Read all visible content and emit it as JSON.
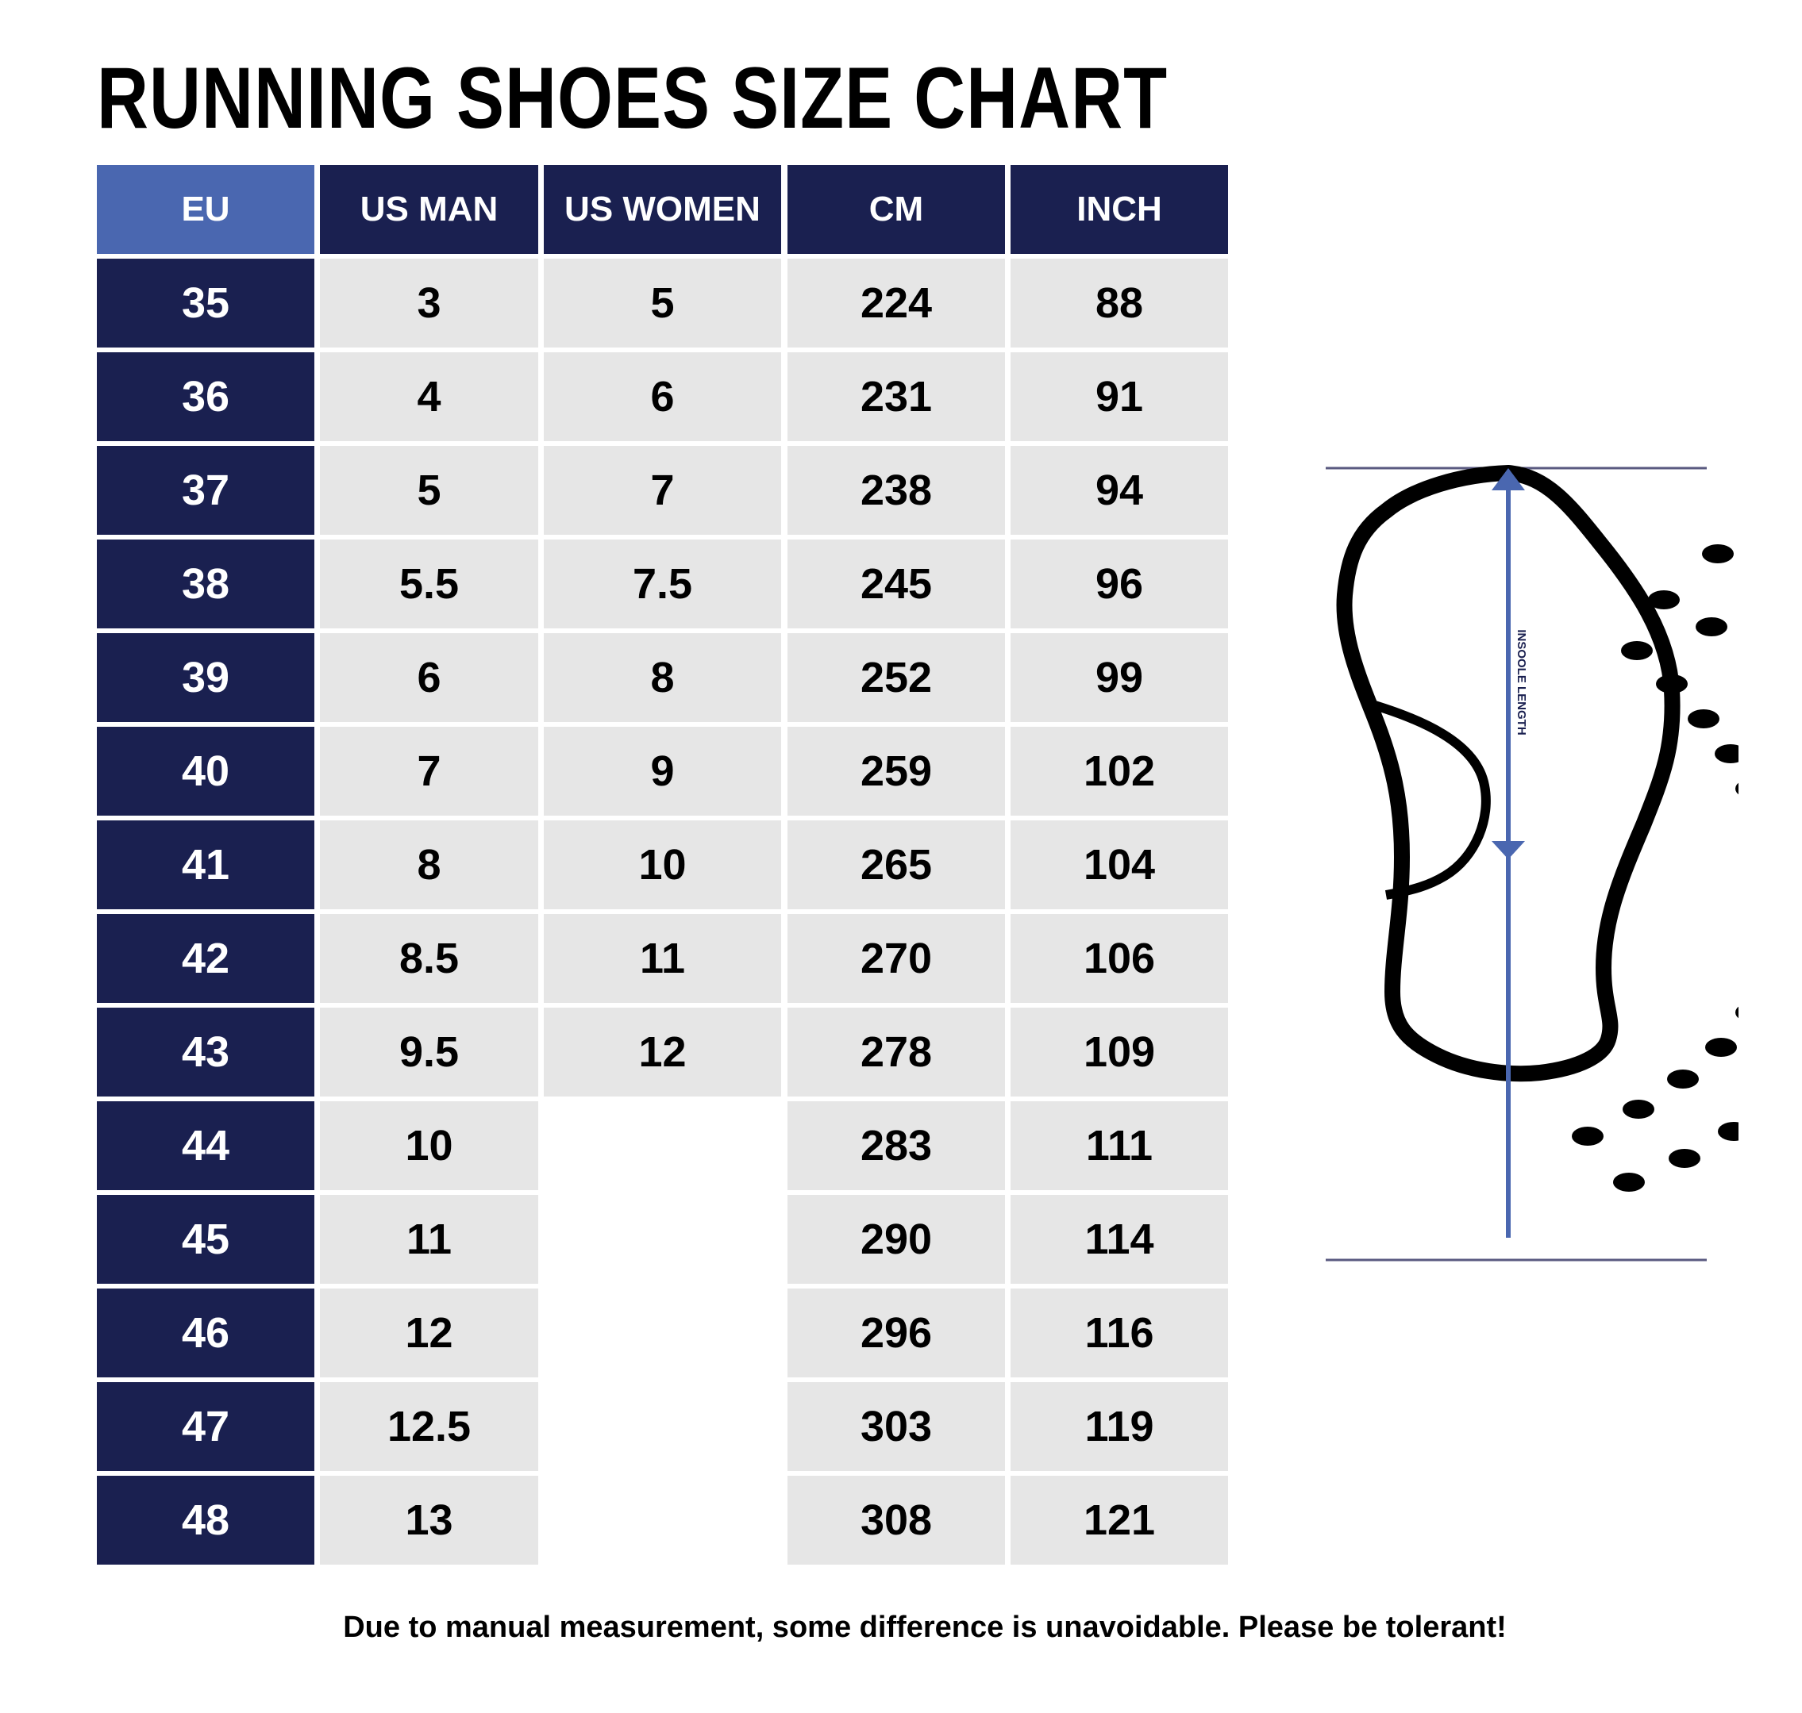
{
  "title": "RUNNING SHOES SIZE CHART",
  "colors": {
    "header_navy": "#1a2050",
    "header_eu": "#4a67b0",
    "cell_gray": "#e6e6e6",
    "arrow_blue": "#4a67b0"
  },
  "table": {
    "headers": [
      "EU",
      "US MAN",
      "US WOMEN",
      "CM",
      "INCH"
    ],
    "rows": [
      [
        "35",
        "3",
        "5",
        "224",
        "88"
      ],
      [
        "36",
        "4",
        "6",
        "231",
        "91"
      ],
      [
        "37",
        "5",
        "7",
        "238",
        "94"
      ],
      [
        "38",
        "5.5",
        "7.5",
        "245",
        "96"
      ],
      [
        "39",
        "6",
        "8",
        "252",
        "99"
      ],
      [
        "40",
        "7",
        "9",
        "259",
        "102"
      ],
      [
        "41",
        "8",
        "10",
        "265",
        "104"
      ],
      [
        "42",
        "8.5",
        "11",
        "270",
        "106"
      ],
      [
        "43",
        "9.5",
        "12",
        "278",
        "109"
      ],
      [
        "44",
        "10",
        "",
        "283",
        "111"
      ],
      [
        "45",
        "11",
        "",
        "290",
        "114"
      ],
      [
        "46",
        "12",
        "",
        "296",
        "116"
      ],
      [
        "47",
        "12.5",
        "",
        "303",
        "119"
      ],
      [
        "48",
        "13",
        "",
        "308",
        "121"
      ]
    ]
  },
  "diagram": {
    "icon": "shoe-insole-icon",
    "label": "INSOOLE LENGTH"
  },
  "footer": "Due to manual measurement, some difference is unavoidable. Please be tolerant!"
}
